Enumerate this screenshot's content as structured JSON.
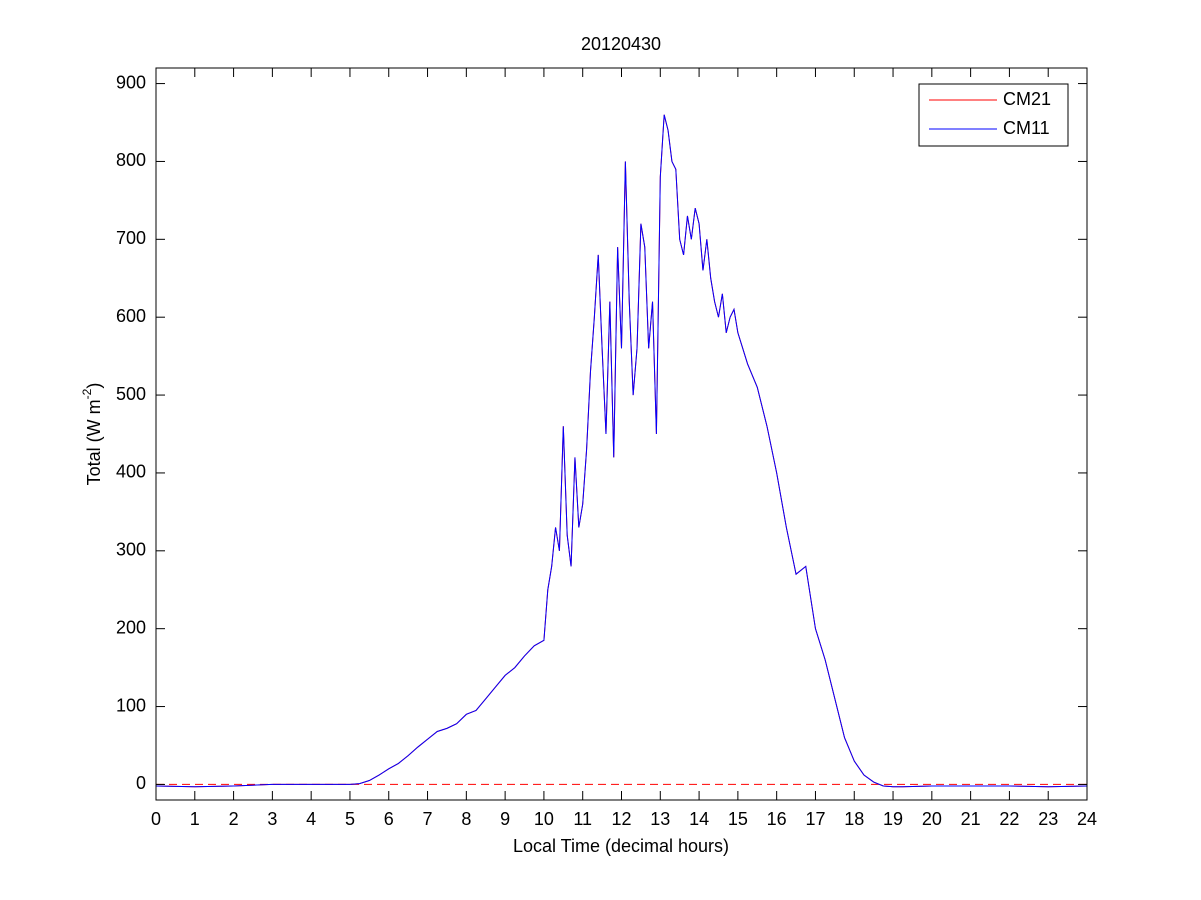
{
  "chart_data": {
    "type": "line",
    "title": "20120430",
    "x_label": "Local Time (decimal hours)",
    "y_label": "Total (W m",
    "y_label_superscript": "-2",
    "y_label_end": ")",
    "x": [
      0,
      1,
      2,
      3,
      4,
      5,
      5.25,
      5.5,
      5.75,
      6,
      6.25,
      6.5,
      6.75,
      7,
      7.25,
      7.5,
      7.75,
      8,
      8.25,
      8.5,
      8.75,
      9,
      9.25,
      9.5,
      9.75,
      10,
      10.1,
      10.2,
      10.3,
      10.4,
      10.5,
      10.6,
      10.7,
      10.8,
      10.9,
      11,
      11.1,
      11.2,
      11.3,
      11.4,
      11.5,
      11.6,
      11.7,
      11.8,
      11.9,
      12,
      12.1,
      12.2,
      12.3,
      12.4,
      12.5,
      12.6,
      12.7,
      12.8,
      12.9,
      13,
      13.1,
      13.2,
      13.3,
      13.4,
      13.5,
      13.6,
      13.7,
      13.8,
      13.9,
      14,
      14.1,
      14.2,
      14.3,
      14.4,
      14.5,
      14.6,
      14.7,
      14.8,
      14.9,
      15,
      15.25,
      15.5,
      15.75,
      16,
      16.25,
      16.5,
      16.75,
      17,
      17.25,
      17.5,
      17.75,
      18,
      18.25,
      18.5,
      18.75,
      19,
      19.25,
      20,
      21,
      22,
      23,
      24
    ],
    "series": [
      {
        "name": "CM21",
        "color": "#ff0000",
        "values": [
          -2,
          -3,
          -2,
          0,
          0,
          0,
          1,
          5,
          12,
          20,
          27,
          37,
          48,
          58,
          68,
          72,
          78,
          90,
          95,
          110,
          125,
          140,
          150,
          165,
          178,
          185,
          250,
          280,
          330,
          300,
          460,
          320,
          280,
          420,
          330,
          360,
          430,
          530,
          600,
          680,
          560,
          450,
          620,
          420,
          690,
          560,
          800,
          620,
          500,
          560,
          720,
          690,
          560,
          620,
          450,
          780,
          860,
          840,
          800,
          790,
          700,
          680,
          730,
          700,
          740,
          720,
          660,
          700,
          650,
          620,
          600,
          630,
          580,
          600,
          610,
          580,
          540,
          510,
          460,
          400,
          330,
          270,
          280,
          200,
          160,
          110,
          60,
          30,
          12,
          3,
          -2,
          -3,
          -3,
          -2,
          -2,
          -2,
          -3,
          -2
        ]
      },
      {
        "name": "CM11",
        "color": "#0000ff",
        "values": [
          -2,
          -3,
          -2,
          0,
          0,
          0,
          1,
          5,
          12,
          20,
          27,
          37,
          48,
          58,
          68,
          72,
          78,
          90,
          95,
          110,
          125,
          140,
          150,
          165,
          178,
          185,
          250,
          280,
          330,
          300,
          460,
          320,
          280,
          420,
          330,
          360,
          430,
          530,
          600,
          680,
          560,
          450,
          620,
          420,
          690,
          560,
          800,
          620,
          500,
          560,
          720,
          690,
          560,
          620,
          450,
          780,
          860,
          840,
          800,
          790,
          700,
          680,
          730,
          700,
          740,
          720,
          660,
          700,
          650,
          620,
          600,
          630,
          580,
          600,
          610,
          580,
          540,
          510,
          460,
          400,
          330,
          270,
          280,
          200,
          160,
          110,
          60,
          30,
          12,
          3,
          -2,
          -3,
          -3,
          -2,
          -2,
          -2,
          -3,
          -2
        ]
      }
    ],
    "xlim": [
      0,
      24
    ],
    "xticks": [
      0,
      1,
      2,
      3,
      4,
      5,
      6,
      7,
      8,
      9,
      10,
      11,
      12,
      13,
      14,
      15,
      16,
      17,
      18,
      19,
      20,
      21,
      22,
      23,
      24
    ],
    "ylim": [
      -20,
      920
    ],
    "yticks": [
      0,
      100,
      200,
      300,
      400,
      500,
      600,
      700,
      800,
      900
    ],
    "grid": false,
    "legend": "upper right"
  }
}
